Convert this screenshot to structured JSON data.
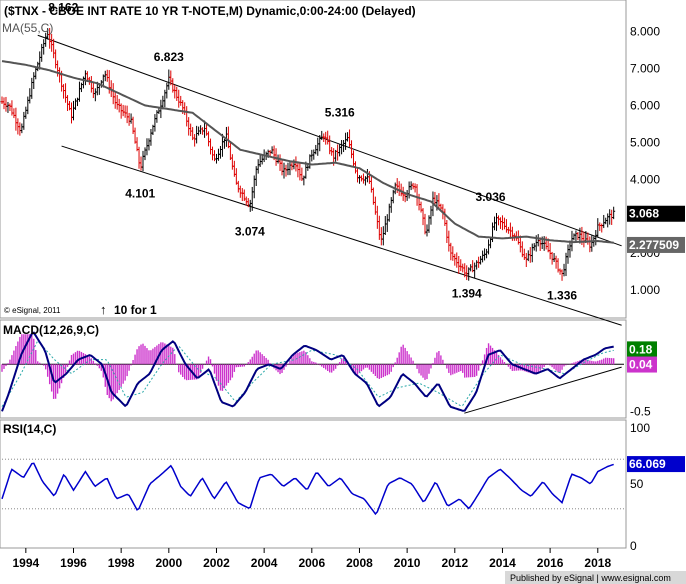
{
  "header": {
    "title": "($TNX - CBOE INT RATE 10 YR T-NOTE,M) Dynamic,0:00-24:00 (Delayed)",
    "ma_label": "MA(55,C)",
    "copyright": "© eSignal, 2011",
    "split_note": "10 for 1",
    "footer": "Published by eSignal | www.esignal.com"
  },
  "colors": {
    "up_bar": "#000000",
    "down_bar": "#dd0000",
    "ma_line": "#555555",
    "channel_line": "#000000",
    "macd_line": "#000080",
    "signal_line": "#2aa8a8",
    "histogram": "#cc33cc",
    "rsi_line": "#0000cc",
    "price_tag_bg": "#000000",
    "ma_tag_bg": "#666666",
    "macd_tag_bg": "#008000",
    "rsi_tag_bg": "#0000cc"
  },
  "chart_data": [
    {
      "type": "line",
      "title": "$TNX - CBOE INT RATE 10 YR T-NOTE, Monthly",
      "style": "ohlc-bars",
      "xlabel": "",
      "ylabel": "",
      "ylim": [
        0.3,
        8.8
      ],
      "xlim": [
        1993.0,
        2019.1
      ],
      "y_ticks": [
        "8.000",
        "7.000",
        "6.000",
        "5.000",
        "4.000",
        "3.000",
        "2.000",
        "1.000"
      ],
      "x_ticks": [
        "1994",
        "1996",
        "1998",
        "2000",
        "2002",
        "2004",
        "2006",
        "2008",
        "2010",
        "2012",
        "2014",
        "2016",
        "2018"
      ],
      "anchors": [
        [
          1993.0,
          6.1
        ],
        [
          1993.3,
          6.0
        ],
        [
          1993.8,
          5.3
        ],
        [
          1994.3,
          6.7
        ],
        [
          1994.9,
          8.0
        ],
        [
          1995.5,
          6.6
        ],
        [
          1995.9,
          5.7
        ],
        [
          1996.5,
          6.9
        ],
        [
          1996.9,
          6.3
        ],
        [
          1997.3,
          6.9
        ],
        [
          1997.8,
          6.0
        ],
        [
          1998.4,
          5.6
        ],
        [
          1998.8,
          4.3
        ],
        [
          1999.3,
          5.4
        ],
        [
          1999.7,
          6.1
        ],
        [
          2000.0,
          6.7
        ],
        [
          2000.6,
          5.9
        ],
        [
          2001.0,
          5.1
        ],
        [
          2001.5,
          5.4
        ],
        [
          2001.9,
          4.5
        ],
        [
          2002.4,
          5.2
        ],
        [
          2002.8,
          3.9
        ],
        [
          2003.4,
          3.3
        ],
        [
          2003.7,
          4.4
        ],
        [
          2004.3,
          4.8
        ],
        [
          2004.8,
          4.2
        ],
        [
          2005.3,
          4.5
        ],
        [
          2005.6,
          4.0
        ],
        [
          2006.0,
          4.7
        ],
        [
          2006.5,
          5.2
        ],
        [
          2006.9,
          4.6
        ],
        [
          2007.5,
          5.1
        ],
        [
          2007.9,
          4.1
        ],
        [
          2008.4,
          4.0
        ],
        [
          2008.9,
          2.3
        ],
        [
          2009.5,
          3.8
        ],
        [
          2009.9,
          3.6
        ],
        [
          2010.3,
          3.9
        ],
        [
          2010.8,
          2.5
        ],
        [
          2011.1,
          3.5
        ],
        [
          2011.5,
          3.1
        ],
        [
          2011.8,
          2.0
        ],
        [
          2012.5,
          1.45
        ],
        [
          2012.9,
          1.7
        ],
        [
          2013.3,
          2.0
        ],
        [
          2013.7,
          2.9
        ],
        [
          2014.0,
          2.8
        ],
        [
          2014.5,
          2.5
        ],
        [
          2015.0,
          1.8
        ],
        [
          2015.5,
          2.4
        ],
        [
          2016.0,
          2.0
        ],
        [
          2016.5,
          1.42
        ],
        [
          2016.9,
          2.4
        ],
        [
          2017.2,
          2.5
        ],
        [
          2017.7,
          2.2
        ],
        [
          2018.0,
          2.7
        ],
        [
          2018.3,
          2.9
        ],
        [
          2018.5,
          3.0
        ],
        [
          2018.7,
          3.07
        ]
      ],
      "moving_average": {
        "name": "MA(55,C)",
        "points": [
          [
            1993.0,
            7.2
          ],
          [
            1994.0,
            7.1
          ],
          [
            1995.0,
            6.95
          ],
          [
            1996.0,
            6.75
          ],
          [
            1997.0,
            6.6
          ],
          [
            1998.0,
            6.3
          ],
          [
            1999.0,
            6.0
          ],
          [
            2000.0,
            5.9
          ],
          [
            2001.0,
            5.8
          ],
          [
            2002.0,
            5.3
          ],
          [
            2003.0,
            4.8
          ],
          [
            2004.0,
            4.65
          ],
          [
            2005.0,
            4.5
          ],
          [
            2006.0,
            4.4
          ],
          [
            2007.0,
            4.45
          ],
          [
            2008.0,
            4.3
          ],
          [
            2009.0,
            3.9
          ],
          [
            2010.0,
            3.6
          ],
          [
            2011.0,
            3.4
          ],
          [
            2012.0,
            2.8
          ],
          [
            2013.0,
            2.45
          ],
          [
            2014.0,
            2.4
          ],
          [
            2015.0,
            2.45
          ],
          [
            2016.0,
            2.35
          ],
          [
            2017.0,
            2.3
          ],
          [
            2018.0,
            2.33
          ],
          [
            2018.7,
            2.28
          ]
        ]
      },
      "channel": {
        "upper": [
          [
            1994.5,
            7.9
          ],
          [
            2019.0,
            2.2
          ]
        ],
        "lower": [
          [
            1995.5,
            4.9
          ],
          [
            2019.0,
            0.05
          ]
        ]
      },
      "annotations": [
        {
          "text": "8.162",
          "x": 1994.9,
          "y": 8.162,
          "pos": "above-right"
        },
        {
          "text": "6.823",
          "x": 2000.0,
          "y": 6.823,
          "pos": "above"
        },
        {
          "text": "5.316",
          "x": 2006.5,
          "y": 5.316,
          "pos": "above-right"
        },
        {
          "text": "3.036",
          "x": 2013.5,
          "y": 3.036,
          "pos": "above"
        },
        {
          "text": "4.101",
          "x": 1998.8,
          "y": 4.101,
          "pos": "below"
        },
        {
          "text": "3.074",
          "x": 2003.4,
          "y": 3.074,
          "pos": "below"
        },
        {
          "text": "1.394",
          "x": 2012.5,
          "y": 1.394,
          "pos": "below"
        },
        {
          "text": "1.336",
          "x": 2016.5,
          "y": 1.336,
          "pos": "below"
        }
      ],
      "last_price": {
        "value": 3.068,
        "label": "3.068"
      },
      "ma_last": {
        "value": 2.277509,
        "label": "2.277509"
      }
    },
    {
      "type": "line",
      "title": "MACD(12,26,9,C)",
      "ylim": [
        -0.55,
        0.45
      ],
      "y_ticks": [
        "-0.5"
      ],
      "series": [
        {
          "name": "MACD",
          "points": [
            [
              1993.0,
              -0.5
            ],
            [
              1993.3,
              -0.3
            ],
            [
              1993.8,
              0.1
            ],
            [
              1994.3,
              0.35
            ],
            [
              1994.8,
              0.15
            ],
            [
              1995.2,
              -0.2
            ],
            [
              1995.7,
              -0.1
            ],
            [
              1996.2,
              0.05
            ],
            [
              1996.7,
              0.1
            ],
            [
              1997.2,
              0.0
            ],
            [
              1997.6,
              -0.3
            ],
            [
              1998.2,
              -0.45
            ],
            [
              1998.7,
              -0.2
            ],
            [
              1999.2,
              -0.1
            ],
            [
              1999.7,
              0.15
            ],
            [
              2000.2,
              0.25
            ],
            [
              2000.7,
              0.0
            ],
            [
              2001.2,
              -0.15
            ],
            [
              2001.7,
              -0.05
            ],
            [
              2002.2,
              -0.4
            ],
            [
              2002.7,
              -0.45
            ],
            [
              2003.2,
              -0.3
            ],
            [
              2003.7,
              -0.05
            ],
            [
              2004.2,
              0.0
            ],
            [
              2004.7,
              -0.05
            ],
            [
              2005.2,
              0.1
            ],
            [
              2005.7,
              0.2
            ],
            [
              2006.2,
              0.15
            ],
            [
              2006.8,
              0.05
            ],
            [
              2007.3,
              0.1
            ],
            [
              2007.8,
              -0.1
            ],
            [
              2008.3,
              -0.2
            ],
            [
              2008.8,
              -0.45
            ],
            [
              2009.3,
              -0.35
            ],
            [
              2009.8,
              -0.1
            ],
            [
              2010.3,
              -0.2
            ],
            [
              2010.8,
              -0.35
            ],
            [
              2011.3,
              -0.2
            ],
            [
              2011.8,
              -0.45
            ],
            [
              2012.4,
              -0.5
            ],
            [
              2012.9,
              -0.3
            ],
            [
              2013.4,
              0.1
            ],
            [
              2013.9,
              0.15
            ],
            [
              2014.4,
              0.0
            ],
            [
              2014.9,
              -0.05
            ],
            [
              2015.4,
              -0.1
            ],
            [
              2015.9,
              -0.05
            ],
            [
              2016.4,
              -0.15
            ],
            [
              2016.9,
              -0.05
            ],
            [
              2017.4,
              0.05
            ],
            [
              2017.9,
              0.1
            ],
            [
              2018.3,
              0.17
            ],
            [
              2018.7,
              0.19
            ]
          ]
        },
        {
          "name": "Signal",
          "points": [
            [
              1993.0,
              -0.45
            ],
            [
              1993.8,
              -0.1
            ],
            [
              1994.5,
              0.25
            ],
            [
              1995.2,
              0.05
            ],
            [
              1995.9,
              -0.1
            ],
            [
              1996.7,
              0.05
            ],
            [
              1997.4,
              0.05
            ],
            [
              1998.2,
              -0.35
            ],
            [
              1998.9,
              -0.3
            ],
            [
              1999.7,
              0.0
            ],
            [
              2000.4,
              0.2
            ],
            [
              2001.2,
              -0.05
            ],
            [
              2002.0,
              -0.15
            ],
            [
              2002.8,
              -0.4
            ],
            [
              2003.5,
              -0.2
            ],
            [
              2004.3,
              0.0
            ],
            [
              2005.3,
              0.05
            ],
            [
              2006.0,
              0.15
            ],
            [
              2007.0,
              0.1
            ],
            [
              2007.9,
              -0.05
            ],
            [
              2008.8,
              -0.35
            ],
            [
              2009.6,
              -0.25
            ],
            [
              2010.5,
              -0.2
            ],
            [
              2011.3,
              -0.3
            ],
            [
              2012.3,
              -0.45
            ],
            [
              2013.2,
              -0.1
            ],
            [
              2013.9,
              0.1
            ],
            [
              2014.8,
              0.0
            ],
            [
              2015.8,
              -0.05
            ],
            [
              2016.6,
              -0.1
            ],
            [
              2017.5,
              0.03
            ],
            [
              2018.2,
              0.12
            ],
            [
              2018.7,
              0.15
            ]
          ]
        }
      ],
      "trendline": [
        [
          2012.4,
          -0.52
        ],
        [
          2019.0,
          -0.03
        ]
      ],
      "tags": [
        {
          "label": "0.18",
          "value": 0.18
        },
        {
          "label": "0.04",
          "value": 0.04
        }
      ]
    },
    {
      "type": "line",
      "title": "RSI(14,C)",
      "ylim": [
        0,
        100
      ],
      "y_ticks": [
        "100",
        "50",
        "0"
      ],
      "reference_lines": [
        70,
        30
      ],
      "series": [
        {
          "name": "RSI",
          "points": [
            [
              1993.0,
              38
            ],
            [
              1993.4,
              62
            ],
            [
              1993.9,
              55
            ],
            [
              1994.3,
              68
            ],
            [
              1994.7,
              52
            ],
            [
              1995.2,
              40
            ],
            [
              1995.6,
              58
            ],
            [
              1996.0,
              45
            ],
            [
              1996.5,
              60
            ],
            [
              1996.9,
              48
            ],
            [
              1997.4,
              55
            ],
            [
              1997.8,
              38
            ],
            [
              1998.3,
              42
            ],
            [
              1998.7,
              28
            ],
            [
              1999.2,
              50
            ],
            [
              1999.7,
              58
            ],
            [
              2000.1,
              65
            ],
            [
              2000.5,
              48
            ],
            [
              2000.9,
              40
            ],
            [
              2001.4,
              55
            ],
            [
              2001.9,
              38
            ],
            [
              2002.4,
              52
            ],
            [
              2002.9,
              35
            ],
            [
              2003.4,
              30
            ],
            [
              2003.8,
              55
            ],
            [
              2004.3,
              58
            ],
            [
              2004.8,
              48
            ],
            [
              2005.3,
              55
            ],
            [
              2005.8,
              45
            ],
            [
              2006.2,
              60
            ],
            [
              2006.7,
              48
            ],
            [
              2007.2,
              55
            ],
            [
              2007.7,
              42
            ],
            [
              2008.2,
              38
            ],
            [
              2008.7,
              25
            ],
            [
              2009.2,
              50
            ],
            [
              2009.7,
              55
            ],
            [
              2010.2,
              50
            ],
            [
              2010.7,
              35
            ],
            [
              2011.2,
              52
            ],
            [
              2011.7,
              32
            ],
            [
              2012.2,
              38
            ],
            [
              2012.6,
              30
            ],
            [
              2013.0,
              42
            ],
            [
              2013.4,
              55
            ],
            [
              2013.9,
              62
            ],
            [
              2014.3,
              55
            ],
            [
              2014.8,
              45
            ],
            [
              2015.2,
              40
            ],
            [
              2015.7,
              52
            ],
            [
              2016.1,
              42
            ],
            [
              2016.5,
              35
            ],
            [
              2016.9,
              58
            ],
            [
              2017.3,
              55
            ],
            [
              2017.7,
              50
            ],
            [
              2018.0,
              60
            ],
            [
              2018.4,
              64
            ],
            [
              2018.7,
              66.069
            ]
          ]
        }
      ],
      "tags": [
        {
          "label": "66.069",
          "value": 66.069
        }
      ]
    }
  ]
}
